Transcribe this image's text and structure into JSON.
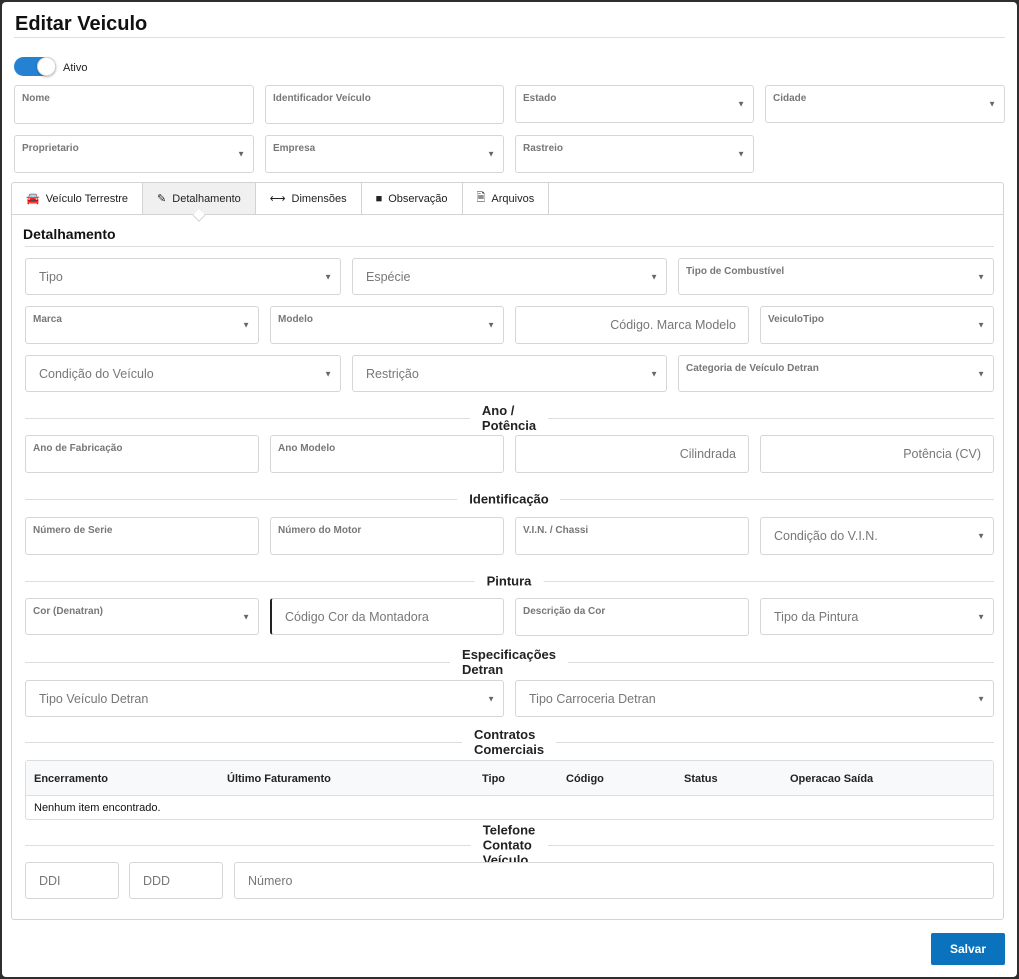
{
  "title": "Editar Veiculo",
  "active_toggle": {
    "label": "Ativo",
    "on": true
  },
  "header_fields": {
    "nome": "Nome",
    "identificador": "Identificador Veículo",
    "estado": "Estado",
    "cidade": "Cidade",
    "proprietario": "Proprietario",
    "empresa": "Empresa",
    "rastreio": "Rastreio"
  },
  "tabs": [
    {
      "label": "Veículo Terrestre",
      "icon": "car-icon"
    },
    {
      "label": "Detalhamento",
      "icon": "pencil-icon",
      "active": true
    },
    {
      "label": "Dimensões",
      "icon": "arrows-horizontal-icon"
    },
    {
      "label": "Observação",
      "icon": "note-icon"
    },
    {
      "label": "Arquivos",
      "icon": "file-icon"
    }
  ],
  "section_title": "Detalhamento",
  "fields": {
    "tipo": "Tipo",
    "especie": "Espécie",
    "combustivel": "Tipo de Combustível",
    "marca": "Marca",
    "modelo": "Modelo",
    "cod_marca_modelo": "Código. Marca Modelo",
    "veiculo_tipo": "VeiculoTipo",
    "condicao": "Condição do Veículo",
    "restricao": "Restrição",
    "categoria": "Categoria de Veículo Detran",
    "ano_fab": "Ano de Fabricação",
    "ano_modelo": "Ano Modelo",
    "cilindrada": "Cilindrada",
    "potencia": "Potência (CV)",
    "num_serie": "Número de Serie",
    "num_motor": "Número do Motor",
    "vin": "V.I.N. / Chassi",
    "cond_vin": "Condição do V.I.N.",
    "cor": "Cor (Denatran)",
    "cod_cor": "Código Cor da Montadora",
    "desc_cor": "Descrição da Cor",
    "tipo_pintura": "Tipo da Pintura",
    "tipo_veic_detran": "Tipo Veículo Detran",
    "tipo_carroceria": "Tipo Carroceria Detran",
    "ddi": "DDI",
    "ddd": "DDD",
    "numero": "Número"
  },
  "sections": {
    "ano": "Ano / Potência",
    "ident": "Identificação",
    "pintura": "Pintura",
    "detran": "Especificações Detran",
    "contratos": "Contratos Comerciais",
    "telefone": "Telefone Contato Veículo"
  },
  "table": {
    "columns": [
      "Encerramento",
      "Último Faturamento",
      "Tipo",
      "Código",
      "Status",
      "Operacao Saída"
    ],
    "empty": "Nenhum item encontrado."
  },
  "save_label": "Salvar",
  "colors": {
    "accent": "#0b72bd",
    "toggle": "#2582d2"
  }
}
